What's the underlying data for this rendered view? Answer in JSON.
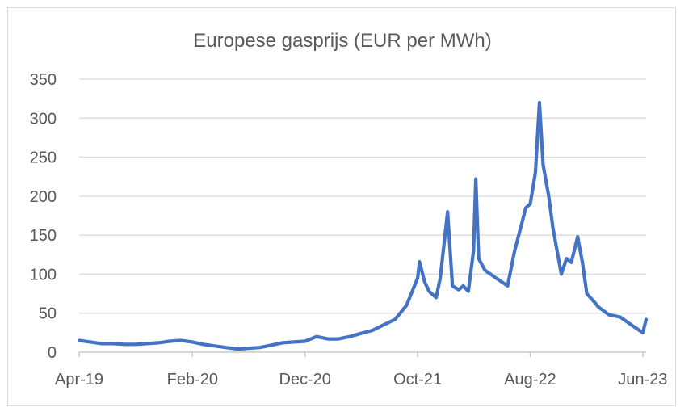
{
  "chart_data": {
    "type": "line",
    "title": "Europese gasprijs (EUR per MWh)",
    "xlabel": "",
    "ylabel": "",
    "ylim": [
      0,
      350
    ],
    "yticks": [
      0,
      50,
      100,
      150,
      200,
      250,
      300,
      350
    ],
    "xtick_labels": [
      "Apr-19",
      "Feb-20",
      "Dec-20",
      "Oct-21",
      "Aug-22",
      "Jun-23"
    ],
    "xtick_months": [
      "2019-04",
      "2020-02",
      "2020-12",
      "2021-10",
      "2022-08",
      "2023-06"
    ],
    "grid": "horizontal",
    "legend": "none",
    "colors": {
      "line": "#4472c4",
      "grid": "#d9d9d9",
      "text": "#595959",
      "axis": "#bfbfbf"
    },
    "series": [
      {
        "points": [
          [
            "2019-04-01",
            15
          ],
          [
            "2019-05-01",
            13
          ],
          [
            "2019-06-01",
            11
          ],
          [
            "2019-07-01",
            11
          ],
          [
            "2019-08-01",
            10
          ],
          [
            "2019-09-01",
            10
          ],
          [
            "2019-10-01",
            11
          ],
          [
            "2019-11-01",
            12
          ],
          [
            "2019-12-01",
            14
          ],
          [
            "2020-01-01",
            15
          ],
          [
            "2020-02-01",
            13
          ],
          [
            "2020-03-01",
            10
          ],
          [
            "2020-04-01",
            8
          ],
          [
            "2020-05-01",
            6
          ],
          [
            "2020-06-01",
            4
          ],
          [
            "2020-07-01",
            5
          ],
          [
            "2020-08-01",
            6
          ],
          [
            "2020-09-01",
            9
          ],
          [
            "2020-10-01",
            12
          ],
          [
            "2020-11-01",
            13
          ],
          [
            "2020-12-01",
            14
          ],
          [
            "2021-01-01",
            20
          ],
          [
            "2021-02-01",
            17
          ],
          [
            "2021-03-01",
            17
          ],
          [
            "2021-04-01",
            20
          ],
          [
            "2021-05-01",
            24
          ],
          [
            "2021-06-01",
            28
          ],
          [
            "2021-07-01",
            35
          ],
          [
            "2021-08-01",
            42
          ],
          [
            "2021-09-01",
            60
          ],
          [
            "2021-10-01",
            95
          ],
          [
            "2021-10-06",
            116
          ],
          [
            "2021-10-20",
            90
          ],
          [
            "2021-11-01",
            78
          ],
          [
            "2021-11-20",
            70
          ],
          [
            "2021-12-01",
            95
          ],
          [
            "2021-12-21",
            180
          ],
          [
            "2022-01-03",
            85
          ],
          [
            "2022-01-20",
            80
          ],
          [
            "2022-02-01",
            85
          ],
          [
            "2022-02-15",
            78
          ],
          [
            "2022-03-01",
            130
          ],
          [
            "2022-03-07",
            222
          ],
          [
            "2022-03-15",
            120
          ],
          [
            "2022-04-01",
            105
          ],
          [
            "2022-05-01",
            95
          ],
          [
            "2022-06-01",
            85
          ],
          [
            "2022-06-20",
            130
          ],
          [
            "2022-07-01",
            150
          ],
          [
            "2022-07-20",
            185
          ],
          [
            "2022-08-01",
            190
          ],
          [
            "2022-08-15",
            230
          ],
          [
            "2022-08-26",
            320
          ],
          [
            "2022-09-05",
            240
          ],
          [
            "2022-09-20",
            200
          ],
          [
            "2022-10-01",
            160
          ],
          [
            "2022-10-24",
            100
          ],
          [
            "2022-11-07",
            120
          ],
          [
            "2022-11-20",
            115
          ],
          [
            "2022-12-07",
            148
          ],
          [
            "2022-12-20",
            115
          ],
          [
            "2023-01-01",
            75
          ],
          [
            "2023-01-20",
            65
          ],
          [
            "2023-02-01",
            58
          ],
          [
            "2023-03-01",
            48
          ],
          [
            "2023-04-01",
            45
          ],
          [
            "2023-05-01",
            35
          ],
          [
            "2023-06-01",
            25
          ],
          [
            "2023-06-10",
            42
          ]
        ]
      }
    ]
  }
}
